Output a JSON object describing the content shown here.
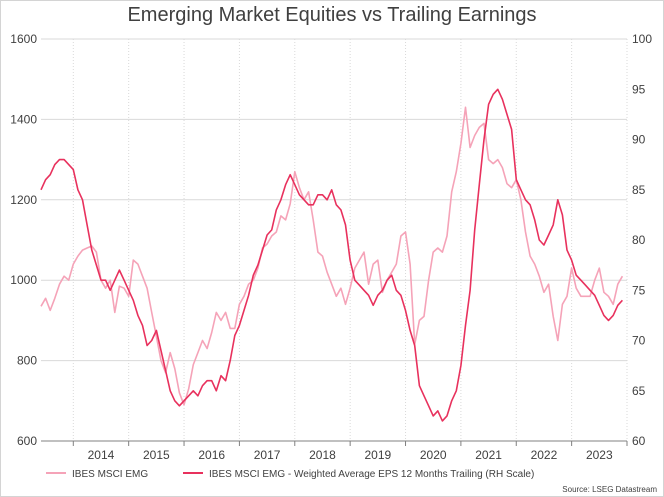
{
  "chart_data": {
    "type": "line",
    "title": "Emerging Market Equities vs Trailing Earnings",
    "source": "Source: LSEG Datastream",
    "x_ticks": [
      "2014",
      "2015",
      "2016",
      "2017",
      "2018",
      "2019",
      "2020",
      "2021",
      "2022",
      "2023"
    ],
    "xlim": [
      "2013-06",
      "2024-01"
    ],
    "left_axis": {
      "min": 600,
      "max": 1600,
      "ticks": [
        600,
        800,
        1000,
        1200,
        1400,
        1600
      ]
    },
    "right_axis": {
      "min": 60,
      "max": 100,
      "ticks": [
        60,
        65,
        70,
        75,
        80,
        85,
        90,
        95,
        100
      ]
    },
    "grid": true,
    "legend_position": "bottom",
    "series": [
      {
        "name": "IBES MSCI EMG",
        "axis": "left",
        "color": "#f5a3b8",
        "points": [
          [
            "2013-06",
            935
          ],
          [
            "2013-07",
            955
          ],
          [
            "2013-08",
            925
          ],
          [
            "2013-09",
            955
          ],
          [
            "2013-10",
            990
          ],
          [
            "2013-11",
            1010
          ],
          [
            "2013-12",
            1000
          ],
          [
            "2014-01",
            1040
          ],
          [
            "2014-02",
            1060
          ],
          [
            "2014-03",
            1075
          ],
          [
            "2014-04",
            1080
          ],
          [
            "2014-05",
            1085
          ],
          [
            "2014-06",
            1070
          ],
          [
            "2014-07",
            1000
          ],
          [
            "2014-08",
            980
          ],
          [
            "2014-09",
            1000
          ],
          [
            "2014-10",
            920
          ],
          [
            "2014-11",
            985
          ],
          [
            "2014-12",
            980
          ],
          [
            "2015-01",
            960
          ],
          [
            "2015-02",
            1050
          ],
          [
            "2015-03",
            1040
          ],
          [
            "2015-04",
            1010
          ],
          [
            "2015-05",
            980
          ],
          [
            "2015-06",
            920
          ],
          [
            "2015-07",
            860
          ],
          [
            "2015-08",
            800
          ],
          [
            "2015-09",
            770
          ],
          [
            "2015-10",
            820
          ],
          [
            "2015-11",
            780
          ],
          [
            "2015-12",
            720
          ],
          [
            "2016-01",
            690
          ],
          [
            "2016-02",
            730
          ],
          [
            "2016-03",
            790
          ],
          [
            "2016-04",
            820
          ],
          [
            "2016-05",
            850
          ],
          [
            "2016-06",
            830
          ],
          [
            "2016-07",
            870
          ],
          [
            "2016-08",
            920
          ],
          [
            "2016-09",
            900
          ],
          [
            "2016-10",
            920
          ],
          [
            "2016-11",
            880
          ],
          [
            "2016-12",
            880
          ],
          [
            "2017-01",
            940
          ],
          [
            "2017-02",
            960
          ],
          [
            "2017-03",
            990
          ],
          [
            "2017-04",
            1000
          ],
          [
            "2017-05",
            1030
          ],
          [
            "2017-06",
            1080
          ],
          [
            "2017-07",
            1090
          ],
          [
            "2017-08",
            1110
          ],
          [
            "2017-09",
            1120
          ],
          [
            "2017-10",
            1160
          ],
          [
            "2017-11",
            1150
          ],
          [
            "2017-12",
            1190
          ],
          [
            "2018-01",
            1270
          ],
          [
            "2018-02",
            1230
          ],
          [
            "2018-03",
            1200
          ],
          [
            "2018-04",
            1220
          ],
          [
            "2018-05",
            1150
          ],
          [
            "2018-06",
            1070
          ],
          [
            "2018-07",
            1060
          ],
          [
            "2018-08",
            1020
          ],
          [
            "2018-09",
            990
          ],
          [
            "2018-10",
            960
          ],
          [
            "2018-11",
            980
          ],
          [
            "2018-12",
            940
          ],
          [
            "2019-01",
            980
          ],
          [
            "2019-02",
            1030
          ],
          [
            "2019-03",
            1050
          ],
          [
            "2019-04",
            1070
          ],
          [
            "2019-05",
            990
          ],
          [
            "2019-06",
            1040
          ],
          [
            "2019-07",
            1050
          ],
          [
            "2019-08",
            970
          ],
          [
            "2019-09",
            1000
          ],
          [
            "2019-10",
            1020
          ],
          [
            "2019-11",
            1040
          ],
          [
            "2019-12",
            1110
          ],
          [
            "2020-01",
            1120
          ],
          [
            "2020-02",
            1040
          ],
          [
            "2020-03",
            840
          ],
          [
            "2020-04",
            900
          ],
          [
            "2020-05",
            910
          ],
          [
            "2020-06",
            1000
          ],
          [
            "2020-07",
            1070
          ],
          [
            "2020-08",
            1080
          ],
          [
            "2020-09",
            1070
          ],
          [
            "2020-10",
            1110
          ],
          [
            "2020-11",
            1220
          ],
          [
            "2020-12",
            1270
          ],
          [
            "2021-01",
            1340
          ],
          [
            "2021-02",
            1430
          ],
          [
            "2021-03",
            1330
          ],
          [
            "2021-04",
            1360
          ],
          [
            "2021-05",
            1380
          ],
          [
            "2021-06",
            1390
          ],
          [
            "2021-07",
            1300
          ],
          [
            "2021-08",
            1290
          ],
          [
            "2021-09",
            1300
          ],
          [
            "2021-10",
            1280
          ],
          [
            "2021-11",
            1240
          ],
          [
            "2021-12",
            1230
          ],
          [
            "2022-01",
            1250
          ],
          [
            "2022-02",
            1200
          ],
          [
            "2022-03",
            1120
          ],
          [
            "2022-04",
            1060
          ],
          [
            "2022-05",
            1040
          ],
          [
            "2022-06",
            1010
          ],
          [
            "2022-07",
            970
          ],
          [
            "2022-08",
            990
          ],
          [
            "2022-09",
            910
          ],
          [
            "2022-10",
            850
          ],
          [
            "2022-11",
            940
          ],
          [
            "2022-12",
            960
          ],
          [
            "2023-01",
            1030
          ],
          [
            "2023-02",
            980
          ],
          [
            "2023-03",
            960
          ],
          [
            "2023-04",
            960
          ],
          [
            "2023-05",
            960
          ],
          [
            "2023-06",
            1000
          ],
          [
            "2023-07",
            1030
          ],
          [
            "2023-08",
            970
          ],
          [
            "2023-09",
            960
          ],
          [
            "2023-10",
            940
          ],
          [
            "2023-11",
            990
          ],
          [
            "2023-12",
            1010
          ]
        ]
      },
      {
        "name": "IBES MSCI EMG - Weighted Average EPS 12 Months Trailing (RH Scale)",
        "axis": "right",
        "color": "#e8315d",
        "points": [
          [
            "2013-06",
            85.0
          ],
          [
            "2013-07",
            86.0
          ],
          [
            "2013-08",
            86.5
          ],
          [
            "2013-09",
            87.5
          ],
          [
            "2013-10",
            88.0
          ],
          [
            "2013-11",
            88.0
          ],
          [
            "2013-12",
            87.5
          ],
          [
            "2014-01",
            87.0
          ],
          [
            "2014-02",
            85.0
          ],
          [
            "2014-03",
            84.0
          ],
          [
            "2014-04",
            81.5
          ],
          [
            "2014-05",
            79.0
          ],
          [
            "2014-06",
            77.5
          ],
          [
            "2014-07",
            76.0
          ],
          [
            "2014-08",
            76.0
          ],
          [
            "2014-09",
            75.0
          ],
          [
            "2014-10",
            76.0
          ],
          [
            "2014-11",
            77.0
          ],
          [
            "2014-12",
            76.0
          ],
          [
            "2015-01",
            75.0
          ],
          [
            "2015-02",
            74.0
          ],
          [
            "2015-03",
            72.5
          ],
          [
            "2015-04",
            71.5
          ],
          [
            "2015-05",
            69.5
          ],
          [
            "2015-06",
            70.0
          ],
          [
            "2015-07",
            71.0
          ],
          [
            "2015-08",
            69.0
          ],
          [
            "2015-09",
            67.0
          ],
          [
            "2015-10",
            65.0
          ],
          [
            "2015-11",
            64.0
          ],
          [
            "2015-12",
            63.5
          ],
          [
            "2016-01",
            64.0
          ],
          [
            "2016-02",
            64.5
          ],
          [
            "2016-03",
            65.0
          ],
          [
            "2016-04",
            64.5
          ],
          [
            "2016-05",
            65.5
          ],
          [
            "2016-06",
            66.0
          ],
          [
            "2016-07",
            66.0
          ],
          [
            "2016-08",
            65.0
          ],
          [
            "2016-09",
            66.5
          ],
          [
            "2016-10",
            66.0
          ],
          [
            "2016-11",
            68.0
          ],
          [
            "2016-12",
            70.5
          ],
          [
            "2017-01",
            71.5
          ],
          [
            "2017-02",
            73.0
          ],
          [
            "2017-03",
            74.5
          ],
          [
            "2017-04",
            76.5
          ],
          [
            "2017-05",
            77.5
          ],
          [
            "2017-06",
            79.0
          ],
          [
            "2017-07",
            80.5
          ],
          [
            "2017-08",
            81.0
          ],
          [
            "2017-09",
            83.0
          ],
          [
            "2017-10",
            84.0
          ],
          [
            "2017-11",
            85.5
          ],
          [
            "2017-12",
            86.5
          ],
          [
            "2018-01",
            85.5
          ],
          [
            "2018-02",
            84.5
          ],
          [
            "2018-03",
            84.0
          ],
          [
            "2018-04",
            83.5
          ],
          [
            "2018-05",
            83.5
          ],
          [
            "2018-06",
            84.5
          ],
          [
            "2018-07",
            84.5
          ],
          [
            "2018-08",
            84.0
          ],
          [
            "2018-09",
            85.0
          ],
          [
            "2018-10",
            83.5
          ],
          [
            "2018-11",
            83.0
          ],
          [
            "2018-12",
            81.5
          ],
          [
            "2019-01",
            78.0
          ],
          [
            "2019-02",
            76.0
          ],
          [
            "2019-03",
            75.5
          ],
          [
            "2019-04",
            75.0
          ],
          [
            "2019-05",
            74.5
          ],
          [
            "2019-06",
            73.5
          ],
          [
            "2019-07",
            74.5
          ],
          [
            "2019-08",
            75.0
          ],
          [
            "2019-09",
            76.0
          ],
          [
            "2019-10",
            76.5
          ],
          [
            "2019-11",
            75.0
          ],
          [
            "2019-12",
            74.5
          ],
          [
            "2020-01",
            73.0
          ],
          [
            "2020-02",
            71.0
          ],
          [
            "2020-03",
            69.5
          ],
          [
            "2020-04",
            65.5
          ],
          [
            "2020-05",
            64.5
          ],
          [
            "2020-06",
            63.5
          ],
          [
            "2020-07",
            62.5
          ],
          [
            "2020-08",
            63.0
          ],
          [
            "2020-09",
            62.0
          ],
          [
            "2020-10",
            62.5
          ],
          [
            "2020-11",
            64.0
          ],
          [
            "2020-12",
            65.0
          ],
          [
            "2021-01",
            67.5
          ],
          [
            "2021-02",
            71.5
          ],
          [
            "2021-03",
            75.0
          ],
          [
            "2021-04",
            81.0
          ],
          [
            "2021-05",
            85.5
          ],
          [
            "2021-06",
            90.0
          ],
          [
            "2021-07",
            93.5
          ],
          [
            "2021-08",
            94.5
          ],
          [
            "2021-09",
            95.0
          ],
          [
            "2021-10",
            94.0
          ],
          [
            "2021-11",
            92.5
          ],
          [
            "2021-12",
            91.0
          ],
          [
            "2022-01",
            86.0
          ],
          [
            "2022-02",
            85.0
          ],
          [
            "2022-03",
            84.0
          ],
          [
            "2022-04",
            83.5
          ],
          [
            "2022-05",
            82.0
          ],
          [
            "2022-06",
            80.0
          ],
          [
            "2022-07",
            79.5
          ],
          [
            "2022-08",
            80.5
          ],
          [
            "2022-09",
            81.5
          ],
          [
            "2022-10",
            84.0
          ],
          [
            "2022-11",
            82.5
          ],
          [
            "2022-12",
            79.0
          ],
          [
            "2023-01",
            78.0
          ],
          [
            "2023-02",
            76.5
          ],
          [
            "2023-03",
            76.0
          ],
          [
            "2023-04",
            75.5
          ],
          [
            "2023-05",
            75.0
          ],
          [
            "2023-06",
            74.5
          ],
          [
            "2023-07",
            73.5
          ],
          [
            "2023-08",
            72.5
          ],
          [
            "2023-09",
            72.0
          ],
          [
            "2023-10",
            72.5
          ],
          [
            "2023-11",
            73.5
          ],
          [
            "2023-12",
            74.0
          ]
        ]
      }
    ]
  }
}
